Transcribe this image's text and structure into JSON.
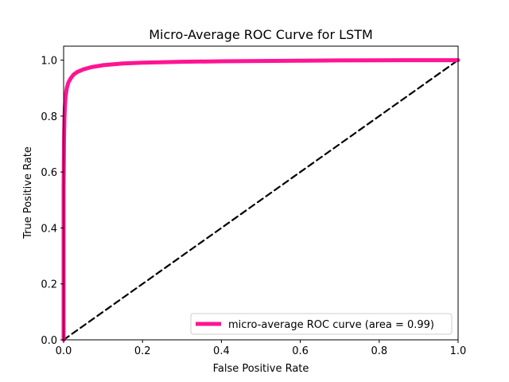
{
  "chart_data": {
    "type": "line",
    "title": "Micro-Average ROC Curve for LSTM",
    "xlabel": "False Positive Rate",
    "ylabel": "True Positive Rate",
    "xlim": [
      0.0,
      1.0
    ],
    "ylim": [
      0.0,
      1.05
    ],
    "x_ticks": [
      "0.0",
      "0.2",
      "0.4",
      "0.6",
      "0.8",
      "1.0"
    ],
    "y_ticks": [
      "0.0",
      "0.2",
      "0.4",
      "0.6",
      "0.8",
      "1.0"
    ],
    "x_tick_values": [
      0.0,
      0.2,
      0.4,
      0.6,
      0.8,
      1.0
    ],
    "y_tick_values": [
      0.0,
      0.2,
      0.4,
      0.6,
      0.8,
      1.0
    ],
    "grid": false,
    "legend_position": "lower-right",
    "series": [
      {
        "name": "micro-average ROC curve (area = 0.99)",
        "color": "#ff1493",
        "style": "solid",
        "x": [
          0.0,
          0.0,
          0.001,
          0.002,
          0.003,
          0.005,
          0.008,
          0.012,
          0.018,
          0.025,
          0.035,
          0.05,
          0.07,
          0.1,
          0.15,
          0.2,
          0.3,
          0.4,
          0.5,
          0.6,
          0.7,
          0.8,
          0.9,
          1.0
        ],
        "y": [
          0.0,
          0.55,
          0.72,
          0.79,
          0.83,
          0.87,
          0.9,
          0.92,
          0.935,
          0.948,
          0.958,
          0.967,
          0.975,
          0.982,
          0.988,
          0.991,
          0.994,
          0.996,
          0.997,
          0.998,
          0.999,
          0.9995,
          1.0,
          1.0
        ]
      },
      {
        "name": "",
        "color": "#000000",
        "style": "dashed",
        "x": [
          0.0,
          1.0
        ],
        "y": [
          0.0,
          1.0
        ]
      }
    ]
  }
}
